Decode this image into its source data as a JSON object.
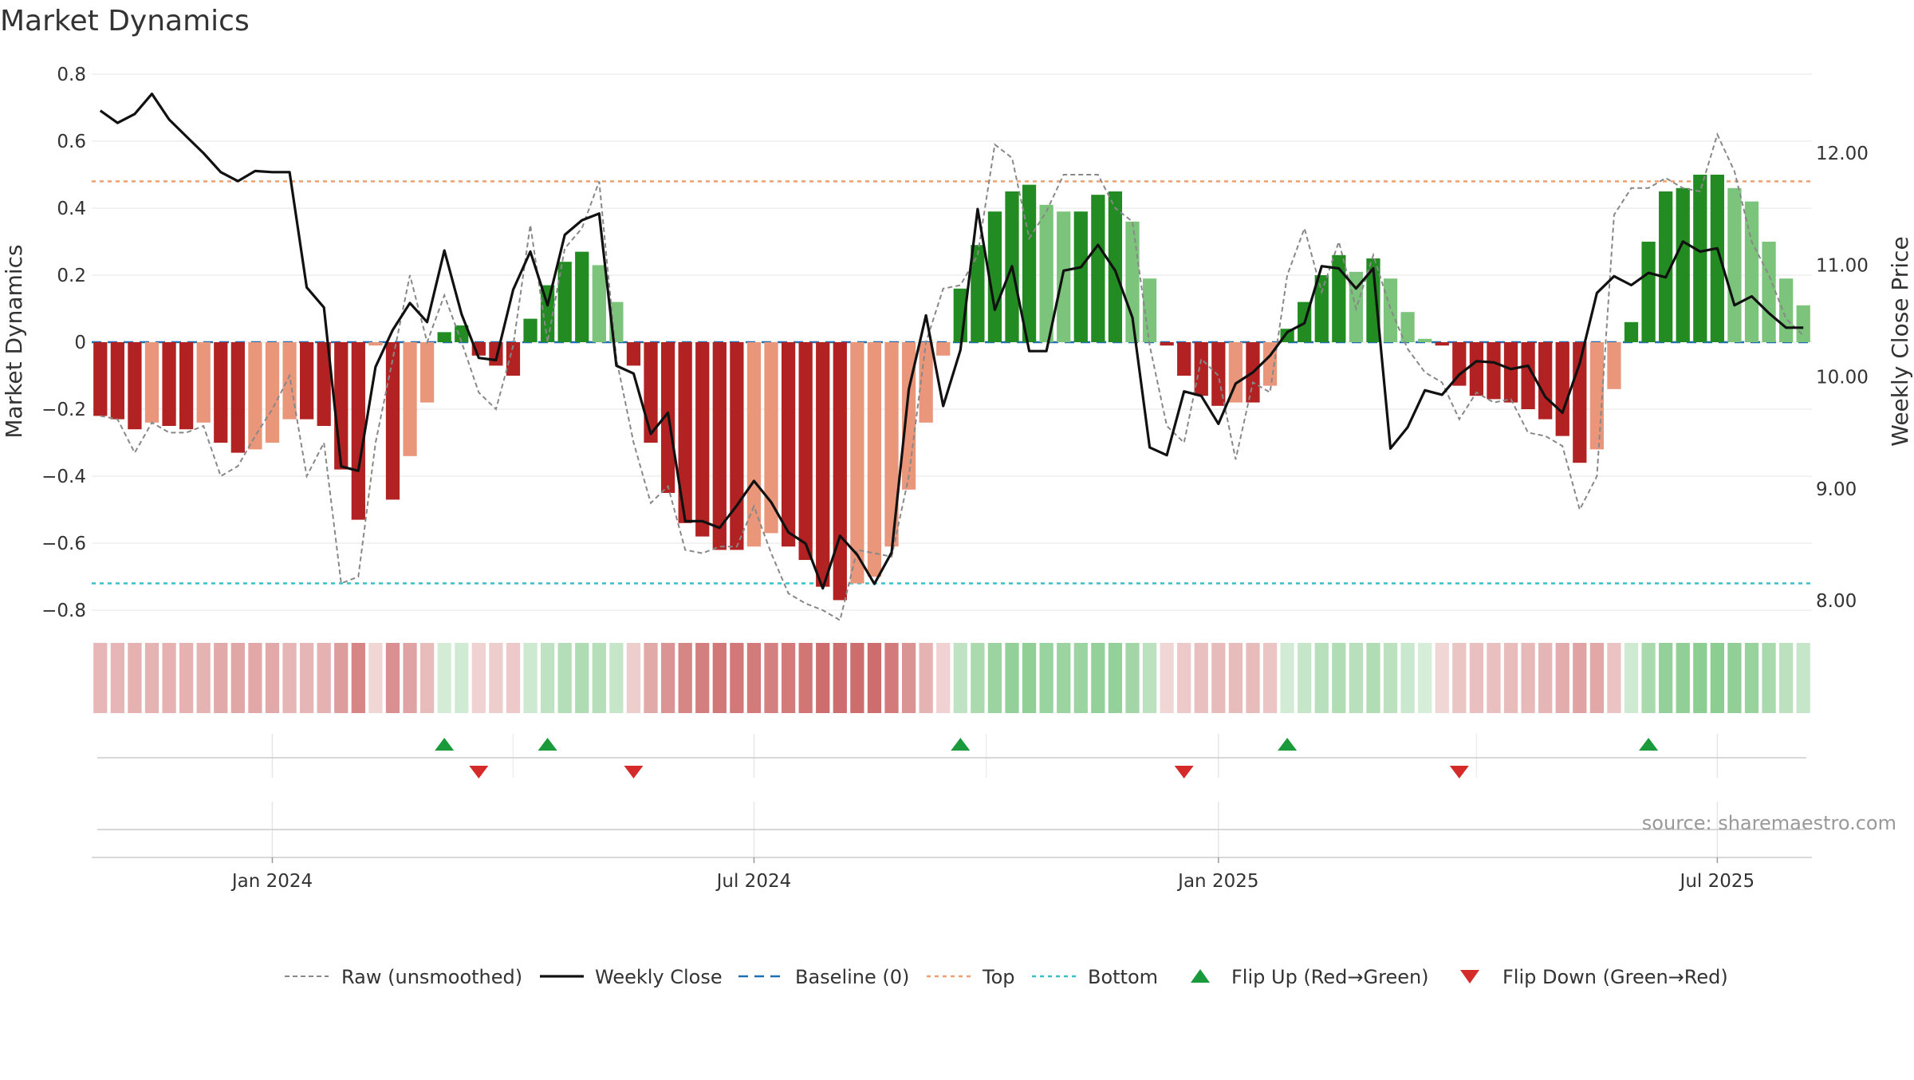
{
  "chart_data": {
    "type": "bar",
    "title": "Market Dynamics",
    "ylabel": "Market Dynamics",
    "y2label": "Weekly Close Price",
    "source": "source: sharemaestro.com",
    "ylim": [
      -0.85,
      0.82
    ],
    "y2lim": [
      7.85,
      12.85
    ],
    "yticks": [
      "0.8",
      "0.6",
      "0.4",
      "0.2",
      "0",
      "−0.2",
      "−0.4",
      "−0.6",
      "−0.8"
    ],
    "y2ticks": [
      "12.00",
      "11.00",
      "10.00",
      "9.00",
      "8.00"
    ],
    "xticks": [
      "Jan 2024",
      "Jul 2024",
      "Jan 2025",
      "Jul 2025"
    ],
    "top_line": 0.48,
    "bottom_line": -0.72,
    "baseline": 0,
    "series": [
      {
        "name": "Market Dynamics",
        "values": [
          -0.22,
          -0.23,
          -0.26,
          -0.24,
          -0.25,
          -0.26,
          -0.24,
          -0.3,
          -0.33,
          -0.32,
          -0.3,
          -0.23,
          -0.23,
          -0.25,
          -0.38,
          -0.53,
          -0.01,
          -0.47,
          -0.34,
          -0.18,
          0.03,
          0.05,
          -0.04,
          -0.07,
          -0.1,
          0.07,
          0.17,
          0.24,
          0.27,
          0.23,
          0.12,
          -0.07,
          -0.3,
          -0.45,
          -0.54,
          -0.58,
          -0.62,
          -0.62,
          -0.61,
          -0.57,
          -0.61,
          -0.65,
          -0.73,
          -0.77,
          -0.72,
          -0.7,
          -0.61,
          -0.44,
          -0.24,
          -0.04,
          0.16,
          0.29,
          0.39,
          0.45,
          0.47,
          0.41,
          0.39,
          0.39,
          0.44,
          0.45,
          0.36,
          0.19,
          -0.01,
          -0.1,
          -0.16,
          -0.19,
          -0.18,
          -0.18,
          -0.13,
          0.04,
          0.12,
          0.2,
          0.26,
          0.21,
          0.25,
          0.19,
          0.09,
          0.01,
          -0.01,
          -0.13,
          -0.16,
          -0.17,
          -0.18,
          -0.2,
          -0.23,
          -0.28,
          -0.36,
          -0.32,
          -0.14,
          0.06,
          0.3,
          0.45,
          0.46,
          0.5,
          0.5,
          0.46,
          0.42,
          0.3,
          0.19,
          0.11
        ]
      },
      {
        "name": "Raw (unsmoothed)",
        "values": [
          -0.22,
          -0.23,
          -0.33,
          -0.24,
          -0.27,
          -0.27,
          -0.25,
          -0.4,
          -0.37,
          -0.28,
          -0.2,
          -0.1,
          -0.4,
          -0.3,
          -0.72,
          -0.7,
          -0.3,
          -0.05,
          0.2,
          0.0,
          0.14,
          0.0,
          -0.15,
          -0.2,
          -0.01,
          0.35,
          0.0,
          0.28,
          0.34,
          0.48,
          -0.05,
          -0.3,
          -0.48,
          -0.43,
          -0.62,
          -0.63,
          -0.61,
          -0.61,
          -0.49,
          -0.63,
          -0.75,
          -0.78,
          -0.8,
          -0.83,
          -0.62,
          -0.63,
          -0.64,
          -0.4,
          0.0,
          0.16,
          0.17,
          0.26,
          0.59,
          0.55,
          0.31,
          0.39,
          0.5,
          0.5,
          0.5,
          0.4,
          0.36,
          -0.01,
          -0.25,
          -0.3,
          -0.05,
          -0.1,
          -0.35,
          -0.12,
          -0.15,
          0.2,
          0.34,
          0.15,
          0.3,
          0.1,
          0.26,
          0.1,
          -0.02,
          -0.09,
          -0.12,
          -0.23,
          -0.15,
          -0.18,
          -0.17,
          -0.27,
          -0.28,
          -0.31,
          -0.5,
          -0.4,
          0.38,
          0.46,
          0.46,
          0.49,
          0.46,
          0.45,
          0.62,
          0.51,
          0.3,
          0.2,
          0.07,
          0.02
        ]
      },
      {
        "name": "Weekly Close",
        "values": [
          12.38,
          12.27,
          12.35,
          12.53,
          12.3,
          12.15,
          12.0,
          11.83,
          11.75,
          11.84,
          11.83,
          11.83,
          10.8,
          10.62,
          9.2,
          9.16,
          10.09,
          10.42,
          10.66,
          10.49,
          11.13,
          10.56,
          10.17,
          10.15,
          10.78,
          11.12,
          10.64,
          11.27,
          11.4,
          11.46,
          10.1,
          10.03,
          9.49,
          9.68,
          8.71,
          8.71,
          8.65,
          8.85,
          9.07,
          8.88,
          8.61,
          8.51,
          8.11,
          8.58,
          8.41,
          8.15,
          8.43,
          9.89,
          10.55,
          9.74,
          10.24,
          11.5,
          10.6,
          10.99,
          10.23,
          10.23,
          10.95,
          10.98,
          11.18,
          10.95,
          10.53,
          9.37,
          9.3,
          9.87,
          9.83,
          9.58,
          9.94,
          10.04,
          10.19,
          10.4,
          10.48,
          10.99,
          10.97,
          10.79,
          10.97,
          9.36,
          9.55,
          9.88,
          9.84,
          10.02,
          10.14,
          10.13,
          10.07,
          10.1,
          9.82,
          9.68,
          10.12,
          10.75,
          10.9,
          10.82,
          10.93,
          10.89,
          11.21,
          11.12,
          11.15,
          10.64,
          10.72,
          10.57,
          10.44,
          10.44
        ]
      },
      {
        "name": "Baseline (0)",
        "values": []
      },
      {
        "name": "Top",
        "values": []
      },
      {
        "name": "Bottom",
        "values": []
      },
      {
        "name": "Flip Up (Red→Green)",
        "values": [
          20,
          26,
          50,
          69,
          90
        ]
      },
      {
        "name": "Flip Down (Green→Red)",
        "values": [
          22,
          31,
          63,
          79
        ]
      }
    ],
    "bar_colors": {
      "strong_red": "#b22222",
      "light_red": "#e9967a",
      "strong_green": "#228b22",
      "light_green": "#7cc47c"
    },
    "line_colors": {
      "raw": "#888888",
      "close": "#111111",
      "baseline": "#1f6fb0",
      "top": "#f0a070",
      "bottom": "#3cc0c8",
      "flip_up": "#1a9a3a",
      "flip_down": "#d42a2a"
    },
    "grid": true,
    "legend_position": "bottom-center"
  }
}
